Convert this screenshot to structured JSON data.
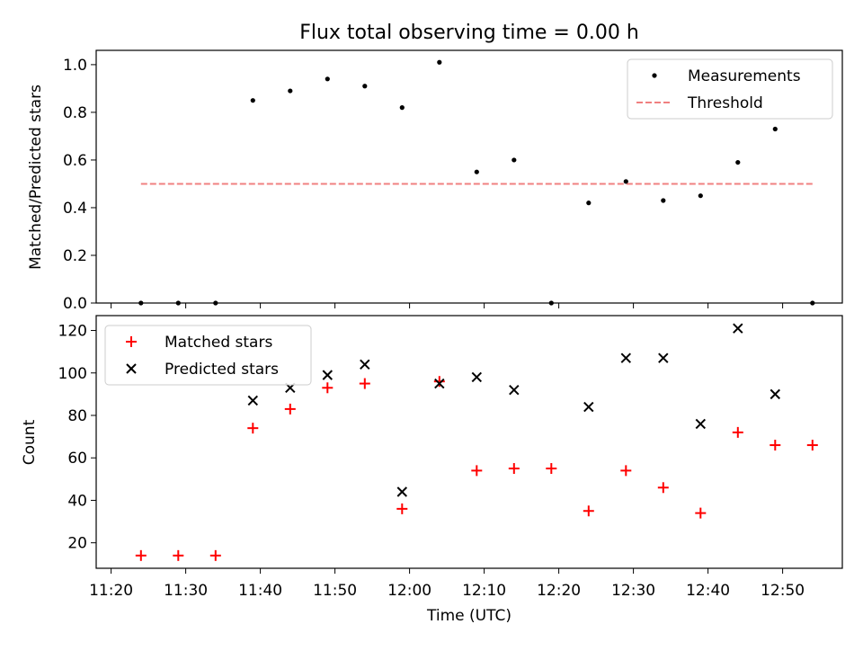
{
  "chart_data": [
    {
      "type": "scatter",
      "title": "Flux total observing time = 0.00 h",
      "xlabel": "",
      "ylabel": "Matched/Predicted stars",
      "xlim": [
        "11:18",
        "12:58"
      ],
      "ylim": [
        0,
        1.06
      ],
      "yticks": [
        0.0,
        0.2,
        0.4,
        0.6,
        0.8,
        1.0
      ],
      "ytick_labels": [
        "0.0",
        "0.2",
        "0.4",
        "0.6",
        "0.8",
        "1.0"
      ],
      "grid": false,
      "legend_position": "top-right",
      "series": [
        {
          "name": "Measurements",
          "marker": "dot",
          "color": "#000000",
          "x": [
            "11:24",
            "11:29",
            "11:34",
            "11:39",
            "11:44",
            "11:49",
            "11:54",
            "11:59",
            "12:04",
            "12:09",
            "12:14",
            "12:19",
            "12:24",
            "12:29",
            "12:34",
            "12:39",
            "12:44",
            "12:49",
            "12:54"
          ],
          "y": [
            0.0,
            0.0,
            0.0,
            0.85,
            0.89,
            0.94,
            0.91,
            0.82,
            1.01,
            0.55,
            0.6,
            0.0,
            0.42,
            0.51,
            0.43,
            0.45,
            0.59,
            0.73,
            0.0
          ]
        },
        {
          "name": "Threshold",
          "marker": "dashed-line",
          "color": "#f08080",
          "x": [
            "11:24",
            "12:54"
          ],
          "y": [
            0.5,
            0.5
          ]
        }
      ]
    },
    {
      "type": "scatter",
      "title": "",
      "xlabel": "Time (UTC)",
      "ylabel": "Count",
      "xlim": [
        "11:18",
        "12:58"
      ],
      "ylim": [
        8,
        127
      ],
      "xticks": [
        "11:20",
        "11:30",
        "11:40",
        "11:50",
        "12:00",
        "12:10",
        "12:20",
        "12:30",
        "12:40",
        "12:50"
      ],
      "yticks": [
        20,
        40,
        60,
        80,
        100,
        120
      ],
      "ytick_labels": [
        "20",
        "40",
        "60",
        "80",
        "100",
        "120"
      ],
      "grid": false,
      "legend_position": "top-left",
      "series": [
        {
          "name": "Matched stars",
          "marker": "plus",
          "color": "#ff0000",
          "x": [
            "11:24",
            "11:29",
            "11:34",
            "11:39",
            "11:44",
            "11:49",
            "11:54",
            "11:59",
            "12:04",
            "12:09",
            "12:14",
            "12:19",
            "12:24",
            "12:29",
            "12:34",
            "12:39",
            "12:44",
            "12:49",
            "12:54"
          ],
          "y": [
            14,
            14,
            14,
            74,
            83,
            93,
            95,
            36,
            96,
            54,
            55,
            55,
            35,
            54,
            46,
            34,
            72,
            66,
            66
          ]
        },
        {
          "name": "Predicted stars",
          "marker": "x",
          "color": "#000000",
          "x": [
            "11:39",
            "11:44",
            "11:49",
            "11:54",
            "11:59",
            "12:04",
            "12:09",
            "12:14",
            "12:24",
            "12:29",
            "12:34",
            "12:39",
            "12:44",
            "12:49"
          ],
          "y": [
            87,
            93,
            99,
            104,
            44,
            95,
            98,
            92,
            84,
            107,
            107,
            76,
            121,
            90
          ]
        }
      ]
    }
  ]
}
